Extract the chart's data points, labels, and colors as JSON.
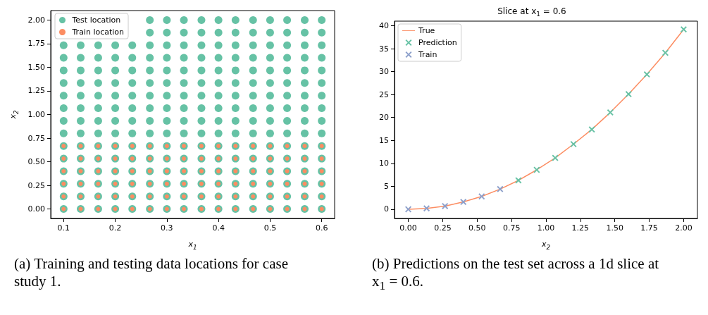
{
  "chart_data": [
    {
      "type": "scatter",
      "xlabel": "x$_{1}$",
      "ylabel": "x$_{2}$",
      "legend": "top left",
      "grid": false,
      "marker": "circle",
      "xlim": [
        0.075,
        0.625
      ],
      "ylim": [
        -0.1,
        2.1
      ],
      "xticks": [
        0.1,
        0.2,
        0.3,
        0.4,
        0.5,
        0.6
      ],
      "yticks": [
        {
          "value": 0,
          "label": "0.00"
        },
        {
          "value": 0.25,
          "label": "0.25"
        },
        {
          "value": 0.5,
          "label": "0.50"
        },
        {
          "value": 0.75,
          "label": "0.75"
        },
        {
          "value": 1,
          "label": "1.00"
        },
        {
          "value": 1.25,
          "label": "1.25"
        },
        {
          "value": 1.5,
          "label": "1.50"
        },
        {
          "value": 1.75,
          "label": "1.75"
        },
        {
          "value": 2,
          "label": "2.00"
        }
      ],
      "annotations": [
        "(a) Training and testing data locations for case study 1."
      ],
      "series": [
        {
          "name": "Test location",
          "color": "#66c2a5",
          "x": [
            0.1,
            0.133,
            0.167,
            0.2,
            0.233,
            0.267,
            0.3,
            0.333,
            0.367,
            0.4,
            0.433,
            0.467,
            0.5,
            0.533,
            0.567,
            0.6,
            0.1,
            0.133,
            0.167,
            0.2,
            0.233,
            0.267,
            0.3,
            0.333,
            0.367,
            0.4,
            0.433,
            0.467,
            0.5,
            0.533,
            0.567,
            0.6,
            0.1,
            0.133,
            0.167,
            0.2,
            0.233,
            0.267,
            0.3,
            0.333,
            0.367,
            0.4,
            0.433,
            0.467,
            0.5,
            0.533,
            0.567,
            0.6,
            0.1,
            0.133,
            0.167,
            0.2,
            0.233,
            0.267,
            0.3,
            0.333,
            0.367,
            0.4,
            0.433,
            0.467,
            0.5,
            0.533,
            0.567,
            0.6,
            0.1,
            0.133,
            0.167,
            0.2,
            0.233,
            0.267,
            0.3,
            0.333,
            0.367,
            0.4,
            0.433,
            0.467,
            0.5,
            0.533,
            0.567,
            0.6,
            0.1,
            0.133,
            0.167,
            0.2,
            0.233,
            0.267,
            0.3,
            0.333,
            0.367,
            0.4,
            0.433,
            0.467,
            0.5,
            0.533,
            0.567,
            0.6,
            0.1,
            0.133,
            0.167,
            0.2,
            0.233,
            0.267,
            0.3,
            0.333,
            0.367,
            0.4,
            0.433,
            0.467,
            0.5,
            0.533,
            0.567,
            0.6,
            0.1,
            0.133,
            0.167,
            0.2,
            0.233,
            0.267,
            0.3,
            0.333,
            0.367,
            0.4,
            0.433,
            0.467,
            0.5,
            0.533,
            0.567,
            0.6,
            0.1,
            0.133,
            0.167,
            0.2,
            0.233,
            0.267,
            0.3,
            0.333,
            0.367,
            0.4,
            0.433,
            0.467,
            0.5,
            0.533,
            0.567,
            0.6,
            0.1,
            0.133,
            0.167,
            0.2,
            0.233,
            0.267,
            0.3,
            0.333,
            0.367,
            0.4,
            0.433,
            0.467,
            0.5,
            0.533,
            0.567,
            0.6,
            0.1,
            0.133,
            0.167,
            0.2,
            0.233,
            0.267,
            0.3,
            0.333,
            0.367,
            0.4,
            0.433,
            0.467,
            0.5,
            0.533,
            0.567,
            0.6,
            0.1,
            0.133,
            0.167,
            0.2,
            0.233,
            0.267,
            0.3,
            0.333,
            0.367,
            0.4,
            0.433,
            0.467,
            0.5,
            0.533,
            0.567,
            0.6,
            0.1,
            0.133,
            0.167,
            0.2,
            0.233,
            0.267,
            0.3,
            0.333,
            0.367,
            0.4,
            0.433,
            0.467,
            0.5,
            0.533,
            0.567,
            0.6,
            0.1,
            0.133,
            0.167,
            0.2,
            0.233,
            0.267,
            0.3,
            0.333,
            0.367,
            0.4,
            0.433,
            0.467,
            0.5,
            0.533,
            0.567,
            0.6,
            0.267,
            0.3,
            0.333,
            0.367,
            0.4,
            0.433,
            0.467,
            0.5,
            0.533,
            0.567,
            0.6,
            0.267,
            0.3,
            0.333,
            0.367,
            0.4,
            0.433,
            0.467,
            0.5,
            0.533,
            0.567,
            0.6
          ],
          "values": [
            0,
            0,
            0,
            0,
            0,
            0,
            0,
            0,
            0,
            0,
            0,
            0,
            0,
            0,
            0,
            0,
            0.133,
            0.133,
            0.133,
            0.133,
            0.133,
            0.133,
            0.133,
            0.133,
            0.133,
            0.133,
            0.133,
            0.133,
            0.133,
            0.133,
            0.133,
            0.133,
            0.267,
            0.267,
            0.267,
            0.267,
            0.267,
            0.267,
            0.267,
            0.267,
            0.267,
            0.267,
            0.267,
            0.267,
            0.267,
            0.267,
            0.267,
            0.267,
            0.4,
            0.4,
            0.4,
            0.4,
            0.4,
            0.4,
            0.4,
            0.4,
            0.4,
            0.4,
            0.4,
            0.4,
            0.4,
            0.4,
            0.4,
            0.4,
            0.533,
            0.533,
            0.533,
            0.533,
            0.533,
            0.533,
            0.533,
            0.533,
            0.533,
            0.533,
            0.533,
            0.533,
            0.533,
            0.533,
            0.533,
            0.533,
            0.667,
            0.667,
            0.667,
            0.667,
            0.667,
            0.667,
            0.667,
            0.667,
            0.667,
            0.667,
            0.667,
            0.667,
            0.667,
            0.667,
            0.667,
            0.667,
            0.8,
            0.8,
            0.8,
            0.8,
            0.8,
            0.8,
            0.8,
            0.8,
            0.8,
            0.8,
            0.8,
            0.8,
            0.8,
            0.8,
            0.8,
            0.8,
            0.933,
            0.933,
            0.933,
            0.933,
            0.933,
            0.933,
            0.933,
            0.933,
            0.933,
            0.933,
            0.933,
            0.933,
            0.933,
            0.933,
            0.933,
            0.933,
            1.067,
            1.067,
            1.067,
            1.067,
            1.067,
            1.067,
            1.067,
            1.067,
            1.067,
            1.067,
            1.067,
            1.067,
            1.067,
            1.067,
            1.067,
            1.067,
            1.2,
            1.2,
            1.2,
            1.2,
            1.2,
            1.2,
            1.2,
            1.2,
            1.2,
            1.2,
            1.2,
            1.2,
            1.2,
            1.2,
            1.2,
            1.2,
            1.333,
            1.333,
            1.333,
            1.333,
            1.333,
            1.333,
            1.333,
            1.333,
            1.333,
            1.333,
            1.333,
            1.333,
            1.333,
            1.333,
            1.333,
            1.333,
            1.467,
            1.467,
            1.467,
            1.467,
            1.467,
            1.467,
            1.467,
            1.467,
            1.467,
            1.467,
            1.467,
            1.467,
            1.467,
            1.467,
            1.467,
            1.467,
            1.6,
            1.6,
            1.6,
            1.6,
            1.6,
            1.6,
            1.6,
            1.6,
            1.6,
            1.6,
            1.6,
            1.6,
            1.6,
            1.6,
            1.6,
            1.6,
            1.733,
            1.733,
            1.733,
            1.733,
            1.733,
            1.733,
            1.733,
            1.733,
            1.733,
            1.733,
            1.733,
            1.733,
            1.733,
            1.733,
            1.733,
            1.733,
            1.867,
            1.867,
            1.867,
            1.867,
            1.867,
            1.867,
            1.867,
            1.867,
            1.867,
            1.867,
            1.867,
            2,
            2,
            2,
            2,
            2,
            2,
            2,
            2,
            2,
            2,
            2
          ]
        },
        {
          "name": "Train location",
          "color": "#fc8d62",
          "x": [
            0.1,
            0.133,
            0.167,
            0.2,
            0.233,
            0.267,
            0.3,
            0.333,
            0.367,
            0.4,
            0.433,
            0.467,
            0.5,
            0.533,
            0.567,
            0.6,
            0.1,
            0.133,
            0.167,
            0.2,
            0.233,
            0.267,
            0.3,
            0.333,
            0.367,
            0.4,
            0.433,
            0.467,
            0.5,
            0.533,
            0.567,
            0.6,
            0.1,
            0.133,
            0.167,
            0.2,
            0.233,
            0.267,
            0.3,
            0.333,
            0.367,
            0.4,
            0.433,
            0.467,
            0.5,
            0.533,
            0.567,
            0.6,
            0.1,
            0.133,
            0.167,
            0.2,
            0.233,
            0.267,
            0.3,
            0.333,
            0.367,
            0.4,
            0.433,
            0.467,
            0.5,
            0.533,
            0.567,
            0.6,
            0.1,
            0.133,
            0.167,
            0.2,
            0.233,
            0.267,
            0.3,
            0.333,
            0.367,
            0.4,
            0.433,
            0.467,
            0.5,
            0.533,
            0.567,
            0.6,
            0.1,
            0.133,
            0.167,
            0.2,
            0.233,
            0.267,
            0.3,
            0.333,
            0.367,
            0.4,
            0.433,
            0.467,
            0.5,
            0.533,
            0.567,
            0.6
          ],
          "values": [
            0,
            0,
            0,
            0,
            0,
            0,
            0,
            0,
            0,
            0,
            0,
            0,
            0,
            0,
            0,
            0,
            0.133,
            0.133,
            0.133,
            0.133,
            0.133,
            0.133,
            0.133,
            0.133,
            0.133,
            0.133,
            0.133,
            0.133,
            0.133,
            0.133,
            0.133,
            0.133,
            0.267,
            0.267,
            0.267,
            0.267,
            0.267,
            0.267,
            0.267,
            0.267,
            0.267,
            0.267,
            0.267,
            0.267,
            0.267,
            0.267,
            0.267,
            0.267,
            0.4,
            0.4,
            0.4,
            0.4,
            0.4,
            0.4,
            0.4,
            0.4,
            0.4,
            0.4,
            0.4,
            0.4,
            0.4,
            0.4,
            0.4,
            0.4,
            0.533,
            0.533,
            0.533,
            0.533,
            0.533,
            0.533,
            0.533,
            0.533,
            0.533,
            0.533,
            0.533,
            0.533,
            0.533,
            0.533,
            0.533,
            0.533,
            0.667,
            0.667,
            0.667,
            0.667,
            0.667,
            0.667,
            0.667,
            0.667,
            0.667,
            0.667,
            0.667,
            0.667,
            0.667,
            0.667,
            0.667,
            0.667
          ]
        }
      ]
    },
    {
      "type": "scatter",
      "title": "Slice at x$_{1}$ = 0.6",
      "xlabel": "x$_{2}$",
      "legend": "top left",
      "grid": false,
      "xlim": [
        -0.1,
        2.1
      ],
      "ylim": [
        -2,
        41
      ],
      "xticks": [
        {
          "value": 0,
          "label": "0.00"
        },
        {
          "value": 0.25,
          "label": "0.25"
        },
        {
          "value": 0.5,
          "label": "0.50"
        },
        {
          "value": 0.75,
          "label": "0.75"
        },
        {
          "value": 1,
          "label": "1.00"
        },
        {
          "value": 1.25,
          "label": "1.25"
        },
        {
          "value": 1.5,
          "label": "1.50"
        },
        {
          "value": 1.75,
          "label": "1.75"
        },
        {
          "value": 2,
          "label": "2.00"
        }
      ],
      "yticks": [
        0,
        5,
        10,
        15,
        20,
        25,
        30,
        35,
        40
      ],
      "annotations": [
        "(b) Predictions on the test set across a 1d slice at x$_{1}$ = 0.6."
      ],
      "series": [
        {
          "name": "True",
          "type": "line",
          "color": "#fc8d62",
          "marker": "none",
          "line_style": "solid",
          "x": [
            0,
            0.133,
            0.267,
            0.4,
            0.533,
            0.667,
            0.8,
            0.933,
            1.067,
            1.2,
            1.333,
            1.467,
            1.6,
            1.733,
            1.867,
            2
          ],
          "values": [
            0,
            0.2,
            0.7,
            1.6,
            2.8,
            4.4,
            6.3,
            8.6,
            11.2,
            14.2,
            17.4,
            21.1,
            25.1,
            29.4,
            34.1,
            39.2
          ]
        },
        {
          "name": "Prediction",
          "color": "#66c2a5",
          "marker": "cross",
          "x": [
            0.8,
            0.933,
            1.067,
            1.2,
            1.333,
            1.467,
            1.6,
            1.733,
            1.867,
            2
          ],
          "values": [
            6.3,
            8.6,
            11.2,
            14.2,
            17.4,
            21.1,
            25.1,
            29.4,
            34.1,
            39.2
          ]
        },
        {
          "name": "Train",
          "color": "#8da0cb",
          "marker": "cross",
          "x": [
            0,
            0.133,
            0.267,
            0.4,
            0.533,
            0.667
          ],
          "values": [
            0,
            0.2,
            0.7,
            1.6,
            2.8,
            4.4
          ]
        }
      ]
    }
  ]
}
